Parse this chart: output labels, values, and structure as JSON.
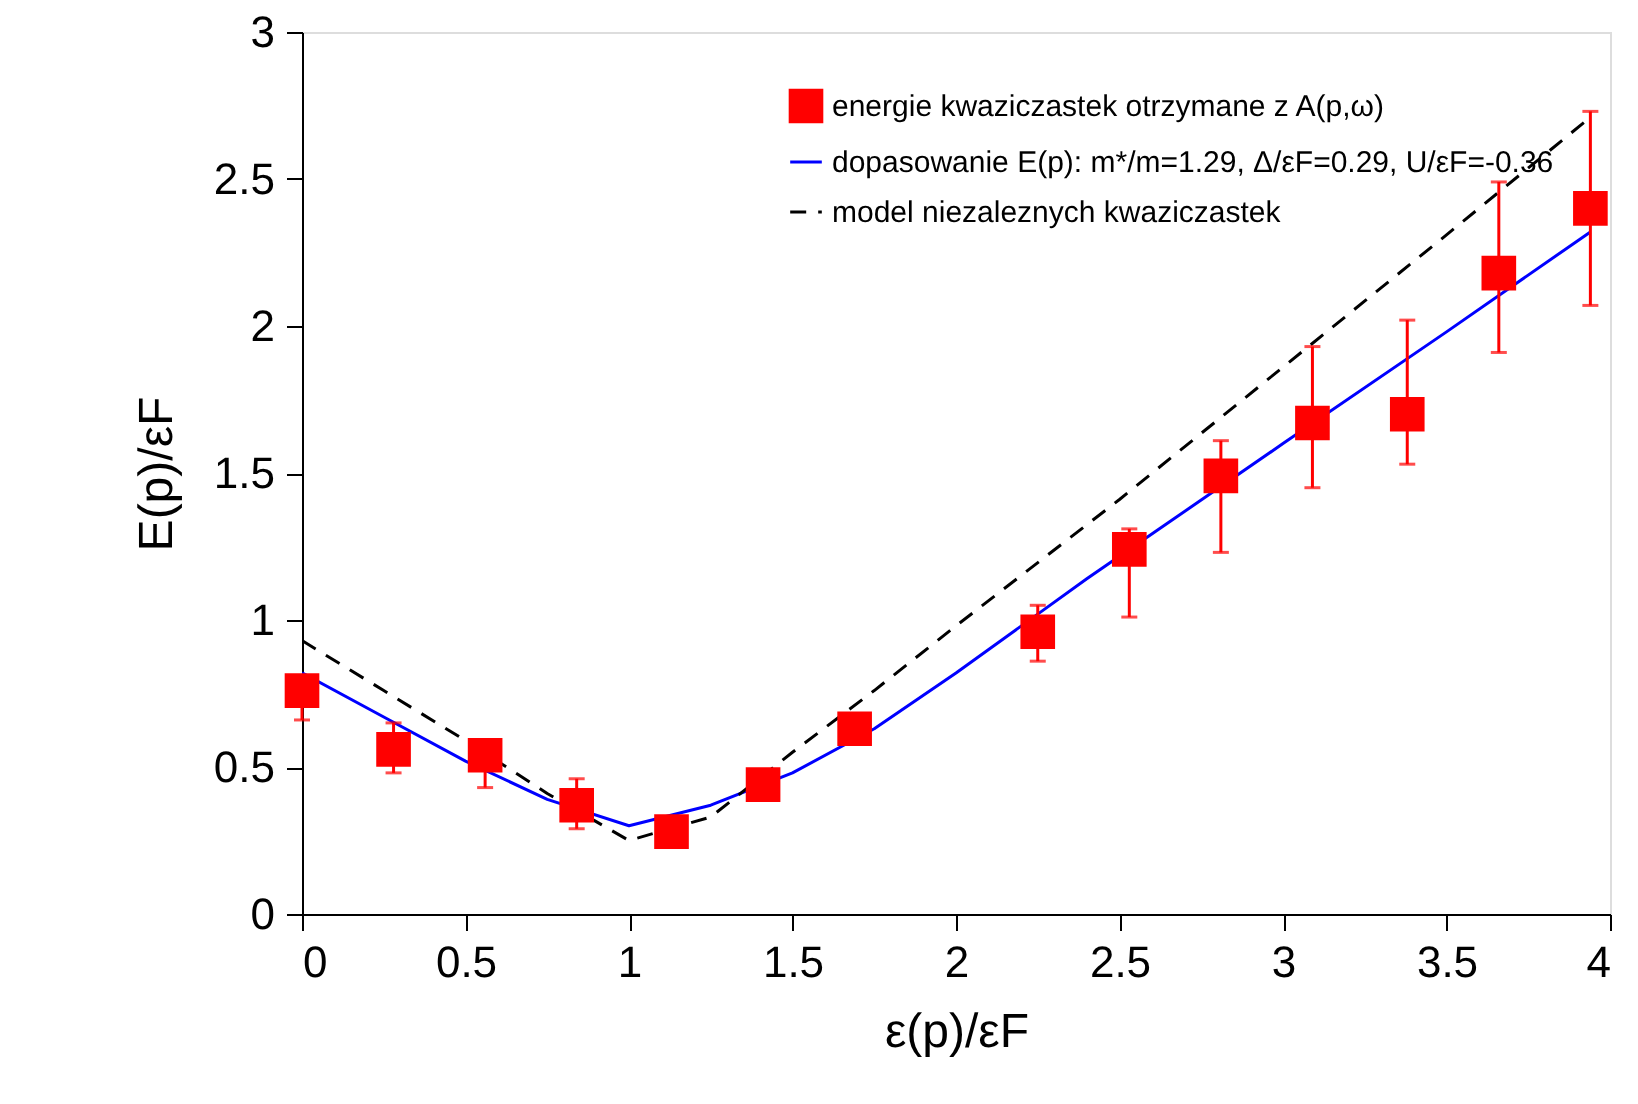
{
  "chart_data": {
    "type": "scatter",
    "xlabel": "ε(p)/εF",
    "ylabel": "E(p)/εF",
    "xlim": [
      0,
      4
    ],
    "ylim": [
      0,
      3
    ],
    "xticks": [
      0,
      0.5,
      1,
      1.5,
      2,
      2.5,
      3,
      3.5,
      4
    ],
    "yticks": [
      0,
      0.5,
      1,
      1.5,
      2,
      2.5,
      3
    ],
    "grid": false,
    "legend": "top right",
    "series": [
      {
        "name": "energie kwaziczastek otrzymane z A(p,ω)",
        "marker": "square",
        "color": "#ff0000",
        "x": [
          0,
          0.28,
          0.56,
          0.84,
          1.13,
          1.41,
          1.69,
          2.25,
          2.53,
          2.81,
          3.09,
          3.38,
          3.66,
          3.94
        ],
        "values": [
          0.76,
          0.56,
          0.54,
          0.37,
          0.28,
          0.44,
          0.63,
          0.96,
          1.24,
          1.49,
          1.67,
          1.7,
          2.18,
          2.4
        ],
        "errors": [
          [
            0.66,
            0.76
          ],
          [
            0.48,
            0.65
          ],
          [
            0.43,
            0.54
          ],
          [
            0.29,
            0.46
          ],
          null,
          null,
          null,
          [
            0.86,
            1.05
          ],
          [
            1.01,
            1.31
          ],
          [
            1.23,
            1.61
          ],
          [
            1.45,
            1.93
          ],
          [
            1.53,
            2.02
          ],
          [
            1.91,
            2.49
          ],
          [
            2.07,
            2.73
          ]
        ]
      },
      {
        "name": "dopasowanie E(p): m*/m=1.29, Δ/εF=0.29, U/εF=-0.36",
        "type": "line",
        "line_style": "solid",
        "color": "#0000ff",
        "x": [
          0,
          0.25,
          0.5,
          0.75,
          1.0,
          1.25,
          1.5,
          1.75,
          2.0,
          2.25,
          2.4,
          3.0,
          3.5,
          3.94
        ],
        "values": [
          0.82,
          0.67,
          0.52,
          0.39,
          0.3,
          0.37,
          0.48,
          0.63,
          0.82,
          1.02,
          1.14,
          1.6,
          1.98,
          2.32
        ]
      },
      {
        "name": "model niezaleznych kwaziczastek",
        "type": "line",
        "line_style": "dashed",
        "color": "#000000",
        "x": [
          0,
          0.25,
          0.5,
          0.75,
          1.0,
          1.25,
          1.5,
          1.75,
          2.0,
          2.5,
          3.0,
          3.5,
          3.94
        ],
        "values": [
          0.93,
          0.76,
          0.59,
          0.41,
          0.25,
          0.33,
          0.55,
          0.76,
          0.98,
          1.41,
          1.86,
          2.31,
          2.71
        ]
      }
    ]
  }
}
